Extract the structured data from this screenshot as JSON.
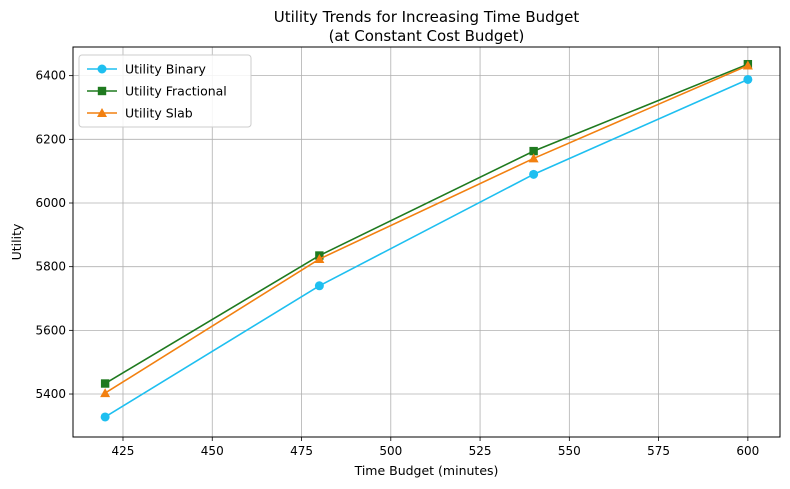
{
  "chart_data": {
    "type": "line",
    "title": "Utility Trends for Increasing Time Budget",
    "subtitle": "(at Constant Cost Budget)",
    "xlabel": "Time Budget (minutes)",
    "ylabel": "Utility",
    "xlim": [
      411,
      609
    ],
    "ylim": [
      5265,
      6490
    ],
    "xticks": [
      425,
      450,
      475,
      500,
      525,
      550,
      575,
      600
    ],
    "yticks": [
      5400,
      5600,
      5800,
      6000,
      6200,
      6400
    ],
    "grid": true,
    "legend_position": "top-left",
    "x": [
      420,
      480,
      540,
      600
    ],
    "series": [
      {
        "name": "Utility Binary",
        "values": [
          5328,
          5740,
          6090,
          6388
        ],
        "color": "#1ebff0",
        "marker": "circle"
      },
      {
        "name": "Utility Fractional",
        "values": [
          5433,
          5835,
          6163,
          6436
        ],
        "color": "#1f7a1f",
        "marker": "square"
      },
      {
        "name": "Utility Slab",
        "values": [
          5403,
          5824,
          6140,
          6432
        ],
        "color": "#f28010",
        "marker": "triangle"
      }
    ]
  }
}
